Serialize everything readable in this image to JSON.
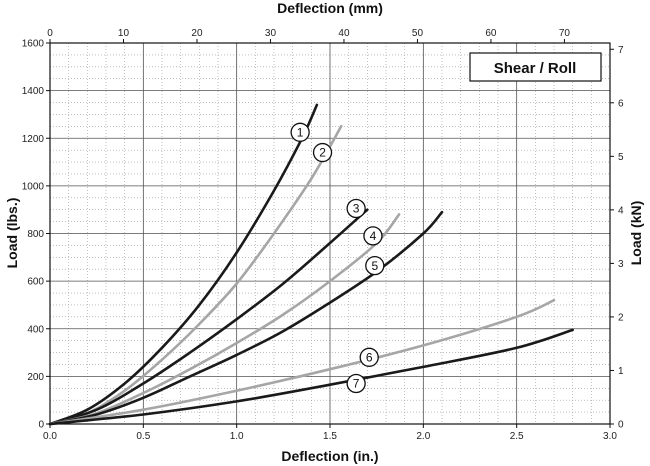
{
  "chart_data": {
    "type": "line",
    "title": "Shear / Roll",
    "xlabel": "Deflection (in.)",
    "ylabel": "Load (lbs.)",
    "x2label": "Deflection (mm)",
    "y2label": "Load (kN)",
    "xlim": [
      0,
      3.0
    ],
    "ylim": [
      0,
      1600
    ],
    "x2lim": [
      0,
      76.2
    ],
    "y2lim": [
      0,
      7.117
    ],
    "x_ticks": [
      "0.0",
      "0.5",
      "1.0",
      "1.5",
      "2.0",
      "2.5",
      "3.0"
    ],
    "y_ticks": [
      "0",
      "200",
      "400",
      "600",
      "800",
      "1000",
      "1200",
      "1400",
      "1600"
    ],
    "x2_ticks": [
      "0",
      "10",
      "20",
      "30",
      "40",
      "50",
      "60",
      "70"
    ],
    "y2_ticks": [
      "0",
      "1",
      "2",
      "3",
      "4",
      "5",
      "6",
      "7"
    ],
    "grid": true,
    "series": [
      {
        "name": "1",
        "color": "#1a1a1a",
        "x": [
          0,
          0.2,
          0.4,
          0.6,
          0.8,
          1.0,
          1.2,
          1.35,
          1.43
        ],
        "y": [
          0,
          60,
          170,
          320,
          500,
          720,
          980,
          1200,
          1340
        ]
      },
      {
        "name": "2",
        "color": "#a6a6a6",
        "x": [
          0,
          0.2,
          0.4,
          0.6,
          0.8,
          1.0,
          1.2,
          1.4,
          1.56
        ],
        "y": [
          0,
          45,
          140,
          270,
          420,
          590,
          800,
          1030,
          1250
        ]
      },
      {
        "name": "3",
        "color": "#1a1a1a",
        "x": [
          0,
          0.25,
          0.5,
          0.75,
          1.0,
          1.25,
          1.5,
          1.7
        ],
        "y": [
          0,
          60,
          170,
          300,
          440,
          590,
          760,
          900
        ]
      },
      {
        "name": "4",
        "color": "#a6a6a6",
        "x": [
          0,
          0.25,
          0.5,
          0.75,
          1.0,
          1.25,
          1.5,
          1.75,
          1.87
        ],
        "y": [
          0,
          45,
          130,
          230,
          340,
          460,
          600,
          760,
          880
        ]
      },
      {
        "name": "5",
        "color": "#1a1a1a",
        "x": [
          0,
          0.25,
          0.5,
          0.75,
          1.0,
          1.25,
          1.5,
          1.75,
          2.0,
          2.1
        ],
        "y": [
          0,
          40,
          110,
          200,
          290,
          390,
          510,
          640,
          800,
          890
        ]
      },
      {
        "name": "6",
        "color": "#a6a6a6",
        "x": [
          0,
          0.5,
          1.0,
          1.5,
          2.0,
          2.5,
          2.7
        ],
        "y": [
          0,
          60,
          140,
          230,
          330,
          450,
          520
        ]
      },
      {
        "name": "7",
        "color": "#1a1a1a",
        "x": [
          0,
          0.5,
          1.0,
          1.5,
          2.0,
          2.5,
          2.8
        ],
        "y": [
          0,
          40,
          95,
          165,
          240,
          320,
          395
        ]
      }
    ],
    "callouts": [
      {
        "label": "1",
        "x": 1.34,
        "y": 1225
      },
      {
        "label": "2",
        "x": 1.46,
        "y": 1140
      },
      {
        "label": "3",
        "x": 1.64,
        "y": 905
      },
      {
        "label": "4",
        "x": 1.73,
        "y": 790
      },
      {
        "label": "5",
        "x": 1.74,
        "y": 665
      },
      {
        "label": "6",
        "x": 1.71,
        "y": 280
      },
      {
        "label": "7",
        "x": 1.64,
        "y": 170
      }
    ]
  }
}
